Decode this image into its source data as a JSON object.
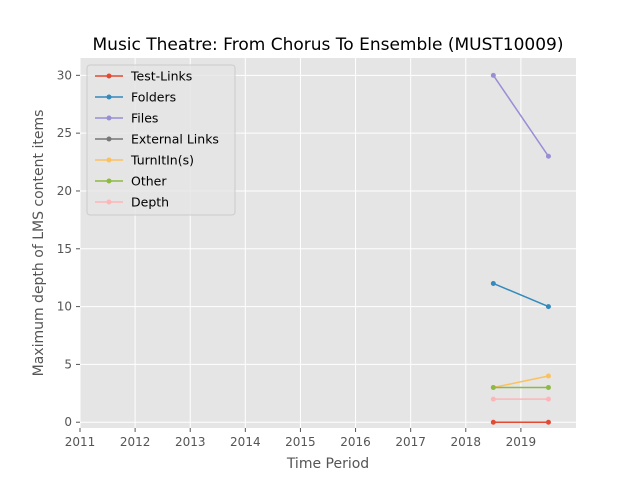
{
  "chart_data": {
    "type": "line",
    "title": "Music Theatre: From Chorus To Ensemble (MUST10009)",
    "xlabel": "Time Period",
    "ylabel": "Maximum depth of LMS content items",
    "xlim": [
      2011,
      2020
    ],
    "ylim": [
      -0.5,
      31.5
    ],
    "xticks": [
      2011,
      2012,
      2013,
      2014,
      2015,
      2016,
      2017,
      2018,
      2019
    ],
    "yticks": [
      0,
      5,
      10,
      15,
      20,
      25,
      30
    ],
    "grid": true,
    "legend_position": "upper-left",
    "x": [
      2018.5,
      2019.5
    ],
    "series": [
      {
        "name": "Test-Links",
        "color": "#e24a33",
        "values": [
          0,
          0
        ]
      },
      {
        "name": "Folders",
        "color": "#348abd",
        "values": [
          12,
          10
        ]
      },
      {
        "name": "Files",
        "color": "#988ed5",
        "values": [
          30,
          23
        ]
      },
      {
        "name": "External Links",
        "color": "#777777",
        "values": [
          null,
          null
        ]
      },
      {
        "name": "TurnItIn(s)",
        "color": "#fbc15e",
        "values": [
          3,
          4
        ]
      },
      {
        "name": "Other",
        "color": "#8eba42",
        "values": [
          3,
          3
        ]
      },
      {
        "name": "Depth",
        "color": "#ffb5b8",
        "values": [
          2,
          2
        ]
      }
    ]
  }
}
